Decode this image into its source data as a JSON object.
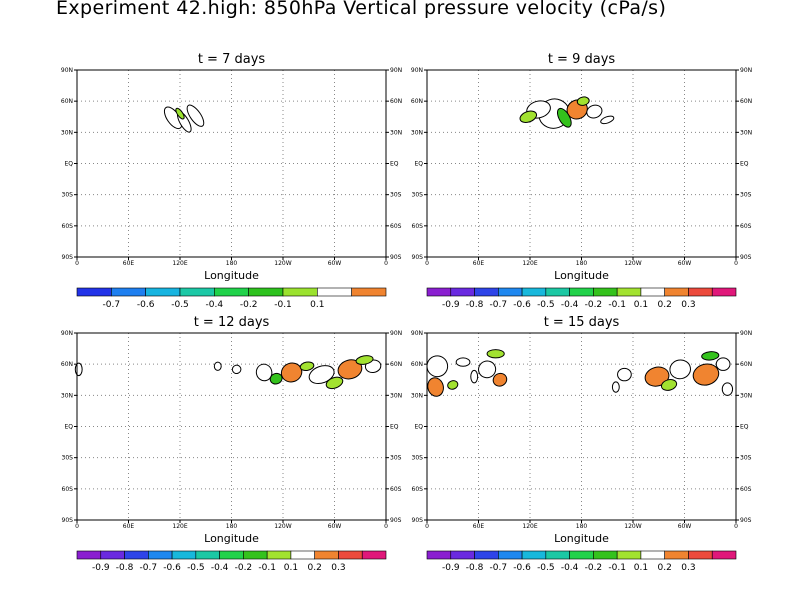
{
  "title": "Experiment 42.high: 850hPa Vertical pressure velocity (cPa/s)",
  "chart_data": [
    {
      "type": "heatmap",
      "title": "t = 7 days",
      "xlabel": "Longitude",
      "xticks": [
        "0",
        "60E",
        "120E",
        "180",
        "120W",
        "60W",
        "0"
      ],
      "yticks_left": [
        "90S",
        "60S",
        "30S",
        "EQ",
        "30N",
        "60N",
        "90N"
      ],
      "yticks_right": [
        "90S",
        "60S",
        "30S",
        "EQ",
        "30N",
        "60N",
        "90N"
      ],
      "xlim": [
        0,
        360
      ],
      "ylim": [
        -90,
        90
      ],
      "grid": true,
      "colorbar": {
        "labels": [
          "-0.7",
          "-0.6",
          "-0.5",
          "-0.4",
          "-0.2",
          "-0.1",
          "0.1"
        ],
        "colors": [
          "#2233e8",
          "#1e7ff0",
          "#17b4e0",
          "#1cc8a6",
          "#20d24a",
          "#2ec21e",
          "#9be22f",
          "#ffffff",
          "#f08430"
        ]
      },
      "features": [
        {
          "lon": 112,
          "lat": 44,
          "dlon": 7,
          "dlat": 12,
          "rot": -35,
          "value": 0.1
        },
        {
          "lon": 125,
          "lat": 40,
          "dlon": 5,
          "dlat": 11,
          "rot": -30,
          "value": 0.1
        },
        {
          "lon": 138,
          "lat": 46,
          "dlon": 6,
          "dlat": 12,
          "rot": -35,
          "value": 0.1
        },
        {
          "lon": 120,
          "lat": 48,
          "dlon": 3,
          "dlat": 6,
          "rot": -35,
          "value": -0.1
        }
      ]
    },
    {
      "type": "heatmap",
      "title": "t = 9 days",
      "xlabel": "Longitude",
      "xticks": [
        "0",
        "60E",
        "120E",
        "180",
        "120W",
        "60W",
        "0"
      ],
      "yticks_left": [
        "90S",
        "60S",
        "30S",
        "EQ",
        "30N",
        "60N",
        "90N"
      ],
      "yticks_right": [
        "90S",
        "60S",
        "30S",
        "EQ",
        "30N",
        "60N",
        "90N"
      ],
      "xlim": [
        0,
        360
      ],
      "ylim": [
        -90,
        90
      ],
      "grid": true,
      "colorbar": {
        "labels": [
          "-0.9",
          "-0.8",
          "-0.7",
          "-0.6",
          "-0.5",
          "-0.4",
          "-0.2",
          "-0.1",
          "0.1",
          "0.2",
          "0.3"
        ],
        "colors": [
          "#8a1fd0",
          "#6a2ae0",
          "#2e44e8",
          "#1f88f0",
          "#18b8dc",
          "#1cc8a4",
          "#22d24a",
          "#34c21c",
          "#a2e230",
          "#ffffff",
          "#f08430",
          "#ec4a3c",
          "#e0187a"
        ]
      },
      "features": [
        {
          "lon": 148,
          "lat": 48,
          "dlon": 18,
          "dlat": 14,
          "rot": -20,
          "value": 0.1
        },
        {
          "lon": 130,
          "lat": 52,
          "dlon": 14,
          "dlat": 8,
          "rot": -15,
          "value": 0.1
        },
        {
          "lon": 175,
          "lat": 52,
          "dlon": 12,
          "dlat": 9,
          "rot": -25,
          "value": 0.2
        },
        {
          "lon": 195,
          "lat": 50,
          "dlon": 9,
          "dlat": 6,
          "rot": -20,
          "value": 0.1
        },
        {
          "lon": 160,
          "lat": 44,
          "dlon": 6,
          "dlat": 10,
          "rot": -30,
          "value": -0.2
        },
        {
          "lon": 118,
          "lat": 45,
          "dlon": 10,
          "dlat": 5,
          "rot": -20,
          "value": -0.1
        },
        {
          "lon": 182,
          "lat": 60,
          "dlon": 7,
          "dlat": 4,
          "rot": -10,
          "value": -0.1
        },
        {
          "lon": 210,
          "lat": 42,
          "dlon": 8,
          "dlat": 3,
          "rot": -20,
          "value": 0.1
        }
      ]
    },
    {
      "type": "heatmap",
      "title": "t = 12 days",
      "xlabel": "Longitude",
      "xticks": [
        "0",
        "60E",
        "120E",
        "180",
        "120W",
        "60W",
        "0"
      ],
      "yticks_left": [
        "90S",
        "60S",
        "30S",
        "EQ",
        "30N",
        "60N",
        "90N"
      ],
      "yticks_right": [
        "90S",
        "60S",
        "30S",
        "EQ",
        "30N",
        "60N",
        "90N"
      ],
      "xlim": [
        0,
        360
      ],
      "ylim": [
        -90,
        90
      ],
      "grid": true,
      "colorbar": {
        "labels": [
          "-0.9",
          "-0.8",
          "-0.7",
          "-0.6",
          "-0.5",
          "-0.4",
          "-0.2",
          "-0.1",
          "0.1",
          "0.2",
          "0.3"
        ],
        "colors": [
          "#8a1fd0",
          "#6a2ae0",
          "#2e44e8",
          "#1f88f0",
          "#18b8dc",
          "#1cc8a4",
          "#22d24a",
          "#34c21c",
          "#a2e230",
          "#ffffff",
          "#f08430",
          "#ec4a3c",
          "#e0187a"
        ]
      },
      "features": [
        {
          "lon": 2,
          "lat": 55,
          "dlon": 4,
          "dlat": 6,
          "rot": 0,
          "value": 0.1
        },
        {
          "lon": 186,
          "lat": 55,
          "dlon": 5,
          "dlat": 4,
          "rot": -20,
          "value": 0.1
        },
        {
          "lon": 164,
          "lat": 58,
          "dlon": 4,
          "dlat": 4,
          "rot": 0,
          "value": 0.1
        },
        {
          "lon": 218,
          "lat": 52,
          "dlon": 9,
          "dlat": 8,
          "rot": -15,
          "value": 0.1
        },
        {
          "lon": 250,
          "lat": 52,
          "dlon": 12,
          "dlat": 9,
          "rot": -20,
          "value": 0.2
        },
        {
          "lon": 285,
          "lat": 50,
          "dlon": 15,
          "dlat": 8,
          "rot": -20,
          "value": 0.1
        },
        {
          "lon": 318,
          "lat": 55,
          "dlon": 14,
          "dlat": 9,
          "rot": -15,
          "value": 0.2
        },
        {
          "lon": 345,
          "lat": 58,
          "dlon": 9,
          "dlat": 6,
          "rot": -10,
          "value": 0.1
        },
        {
          "lon": 232,
          "lat": 46,
          "dlon": 7,
          "dlat": 5,
          "rot": -20,
          "value": -0.2
        },
        {
          "lon": 268,
          "lat": 58,
          "dlon": 8,
          "dlat": 4,
          "rot": -10,
          "value": -0.1
        },
        {
          "lon": 300,
          "lat": 42,
          "dlon": 10,
          "dlat": 5,
          "rot": -20,
          "value": -0.1
        },
        {
          "lon": 335,
          "lat": 64,
          "dlon": 10,
          "dlat": 4,
          "rot": -10,
          "value": -0.1
        }
      ]
    },
    {
      "type": "heatmap",
      "title": "t = 15 days",
      "xlabel": "Longitude",
      "xticks": [
        "0",
        "60E",
        "120E",
        "180",
        "120W",
        "60W",
        "0"
      ],
      "yticks_left": [
        "90S",
        "60S",
        "30S",
        "EQ",
        "30N",
        "60N",
        "90N"
      ],
      "yticks_right": [
        "90S",
        "60S",
        "30S",
        "EQ",
        "30N",
        "60N",
        "90N"
      ],
      "xlim": [
        0,
        360
      ],
      "ylim": [
        -90,
        90
      ],
      "grid": true,
      "colorbar": {
        "labels": [
          "-0.9",
          "-0.8",
          "-0.7",
          "-0.6",
          "-0.5",
          "-0.4",
          "-0.2",
          "-0.1",
          "0.1",
          "0.2",
          "0.3"
        ],
        "colors": [
          "#8a1fd0",
          "#6a2ae0",
          "#2e44e8",
          "#1f88f0",
          "#18b8dc",
          "#1cc8a4",
          "#22d24a",
          "#34c21c",
          "#a2e230",
          "#ffffff",
          "#f08430",
          "#ec4a3c",
          "#e0187a"
        ]
      },
      "features": [
        {
          "lon": 12,
          "lat": 58,
          "dlon": 12,
          "dlat": 10,
          "rot": -10,
          "value": 0.1
        },
        {
          "lon": 10,
          "lat": 38,
          "dlon": 9,
          "dlat": 9,
          "rot": -15,
          "value": 0.2
        },
        {
          "lon": 42,
          "lat": 62,
          "dlon": 8,
          "dlat": 4,
          "rot": 0,
          "value": 0.1
        },
        {
          "lon": 70,
          "lat": 55,
          "dlon": 10,
          "dlat": 8,
          "rot": -20,
          "value": 0.1
        },
        {
          "lon": 85,
          "lat": 45,
          "dlon": 8,
          "dlat": 6,
          "rot": -25,
          "value": 0.2
        },
        {
          "lon": 55,
          "lat": 48,
          "dlon": 4,
          "dlat": 6,
          "rot": 0,
          "value": 0.1
        },
        {
          "lon": 80,
          "lat": 70,
          "dlon": 10,
          "dlat": 4,
          "rot": 0,
          "value": -0.1
        },
        {
          "lon": 30,
          "lat": 40,
          "dlon": 6,
          "dlat": 4,
          "rot": -20,
          "value": -0.1
        },
        {
          "lon": 230,
          "lat": 50,
          "dlon": 8,
          "dlat": 6,
          "rot": 0,
          "value": 0.1
        },
        {
          "lon": 268,
          "lat": 48,
          "dlon": 14,
          "dlat": 9,
          "rot": -15,
          "value": 0.2
        },
        {
          "lon": 295,
          "lat": 55,
          "dlon": 12,
          "dlat": 9,
          "rot": -10,
          "value": 0.1
        },
        {
          "lon": 325,
          "lat": 50,
          "dlon": 15,
          "dlat": 10,
          "rot": -15,
          "value": 0.2
        },
        {
          "lon": 345,
          "lat": 60,
          "dlon": 8,
          "dlat": 6,
          "rot": 0,
          "value": 0.1
        },
        {
          "lon": 330,
          "lat": 68,
          "dlon": 10,
          "dlat": 4,
          "rot": -5,
          "value": -0.2
        },
        {
          "lon": 282,
          "lat": 40,
          "dlon": 9,
          "dlat": 5,
          "rot": -15,
          "value": -0.1
        },
        {
          "lon": 220,
          "lat": 38,
          "dlon": 4,
          "dlat": 5,
          "rot": 0,
          "value": 0.1
        },
        {
          "lon": 350,
          "lat": 36,
          "dlon": 6,
          "dlat": 6,
          "rot": 0,
          "value": 0.1
        }
      ]
    }
  ]
}
